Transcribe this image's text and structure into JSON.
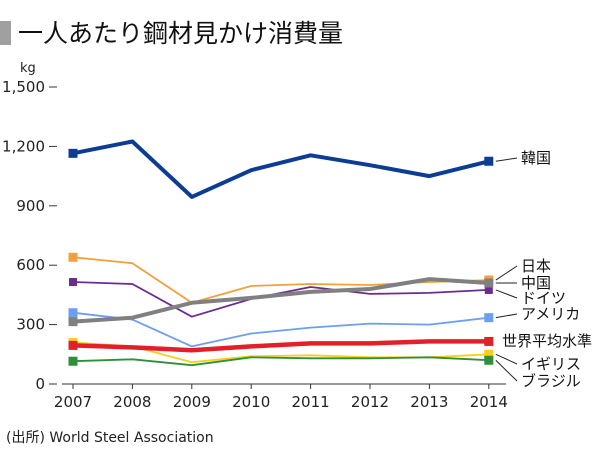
{
  "source": "(出所) World Steel Association",
  "chart_data": {
    "type": "line",
    "title": "一人あたり鋼材見かけ消費量",
    "xlabel": "",
    "ylabel": "kg",
    "x": [
      "2007",
      "2008",
      "2009",
      "2010",
      "2011",
      "2012",
      "2013",
      "2014"
    ],
    "ylim": [
      0,
      1500
    ],
    "yticks": [
      0,
      300,
      600,
      900,
      1200,
      1500
    ],
    "ytick_labels": [
      "0",
      "300",
      "600",
      "900",
      "1,200",
      "1,500"
    ],
    "grid": false,
    "legend": "right",
    "series": [
      {
        "name": "韓国",
        "color": "#0c3c93",
        "values": [
          1165,
          1225,
          945,
          1080,
          1155,
          1105,
          1050,
          1125
        ]
      },
      {
        "name": "日本",
        "color": "#f2a03d",
        "values": [
          640,
          610,
          410,
          495,
          505,
          500,
          515,
          525
        ]
      },
      {
        "name": "中国",
        "color": "#808080",
        "values": [
          315,
          335,
          410,
          435,
          465,
          480,
          530,
          510
        ]
      },
      {
        "name": "ドイツ",
        "color": "#6b2c8f",
        "values": [
          515,
          505,
          340,
          430,
          490,
          455,
          460,
          475
        ]
      },
      {
        "name": "アメリカ",
        "color": "#6d9ef0",
        "values": [
          360,
          325,
          190,
          255,
          285,
          305,
          300,
          335
        ]
      },
      {
        "name": "世界平均水準",
        "color": "#e3202a",
        "values": [
          195,
          185,
          170,
          190,
          205,
          205,
          215,
          215
        ]
      },
      {
        "name": "イギリス",
        "color": "#f3d11c",
        "values": [
          210,
          190,
          110,
          140,
          145,
          135,
          135,
          150
        ]
      },
      {
        "name": "ブラジル",
        "color": "#2f8f3a",
        "values": [
          115,
          125,
          95,
          135,
          130,
          130,
          135,
          120
        ]
      }
    ]
  }
}
